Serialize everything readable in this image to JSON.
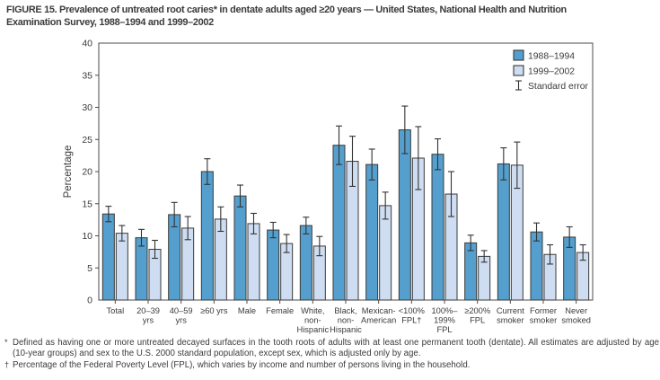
{
  "figure": {
    "title_line1": "FIGURE 15. Prevalence of untreated root caries* in dentate adults aged ≥20 years — United States, National Health and Nutrition",
    "title_line2": "Examination Survey, 1988–1994 and 1999–2002"
  },
  "chart_data": {
    "type": "bar",
    "title": "FIGURE 15. Prevalence of untreated root caries* in dentate adults aged ≥20 years — United States, National Health and Nutrition Examination Survey, 1988–1994 and 1999–2002",
    "xlabel": "",
    "ylabel": "Percentage",
    "ylim": [
      0,
      40
    ],
    "ytick_step": 5,
    "grid": false,
    "legend_position": "top-right-inside",
    "legend_error_label": "Standard error",
    "categories": [
      "Total",
      "20–39 yrs",
      "40–59 yrs",
      "≥60 yrs",
      "Male",
      "Female",
      "White, non-Hispanic",
      "Black, non-Hispanic",
      "Mexican-American",
      "<100% FPL†",
      "100%–199% FPL",
      "≥200% FPL",
      "Current smoker",
      "Former smoker",
      "Never smoked"
    ],
    "category_label_lines": [
      [
        "Total"
      ],
      [
        "20–39",
        "yrs"
      ],
      [
        "40–59",
        "yrs"
      ],
      [
        "≥60 yrs"
      ],
      [
        "Male"
      ],
      [
        "Female"
      ],
      [
        "White,",
        "non-",
        "Hispanic"
      ],
      [
        "Black,",
        "non-",
        "Hispanic"
      ],
      [
        "Mexican-",
        "American"
      ],
      [
        "<100%",
        "FPL†"
      ],
      [
        "100%–",
        "199%",
        "FPL"
      ],
      [
        "≥200%",
        "FPL"
      ],
      [
        "Current",
        "smoker"
      ],
      [
        "Former",
        "smoker"
      ],
      [
        "Never",
        "smoked"
      ]
    ],
    "series": [
      {
        "name": "1988–1994",
        "color": "#549FCD",
        "values": [
          13.4,
          9.7,
          13.3,
          20.0,
          16.2,
          10.9,
          11.6,
          24.1,
          21.1,
          26.5,
          22.7,
          8.9,
          21.2,
          10.6,
          9.8
        ],
        "standard_errors": [
          1.2,
          1.3,
          1.9,
          2.0,
          1.7,
          1.2,
          1.3,
          3.0,
          2.4,
          3.7,
          2.4,
          1.2,
          2.5,
          1.4,
          1.6
        ]
      },
      {
        "name": "1999–2002",
        "color": "#CEDDF1",
        "values": [
          10.4,
          7.9,
          11.2,
          12.6,
          11.9,
          8.8,
          8.4,
          21.6,
          14.7,
          22.1,
          16.5,
          6.8,
          21.0,
          7.1,
          7.4
        ],
        "standard_errors": [
          1.2,
          1.4,
          1.8,
          1.9,
          1.6,
          1.4,
          1.5,
          3.9,
          2.1,
          4.9,
          3.5,
          0.9,
          3.6,
          1.5,
          1.2
        ]
      }
    ]
  },
  "footnotes": [
    {
      "marker": "*",
      "text": "Defined as having one or more untreated decayed surfaces in the tooth roots of adults with at least one permanent tooth (dentate). All estimates are adjusted by age (10-year groups) and sex to the U.S. 2000 standard population, except sex, which is adjusted only by age."
    },
    {
      "marker": "†",
      "text": "Percentage of the Federal Poverty Level (FPL), which varies by income and number of persons living in the household."
    }
  ],
  "colors": {
    "axis": "#4b4b4b",
    "text": "#3b3b3b",
    "bar_stroke": "#3a3a3a",
    "error_bar": "#333333",
    "background": "#ffffff"
  }
}
